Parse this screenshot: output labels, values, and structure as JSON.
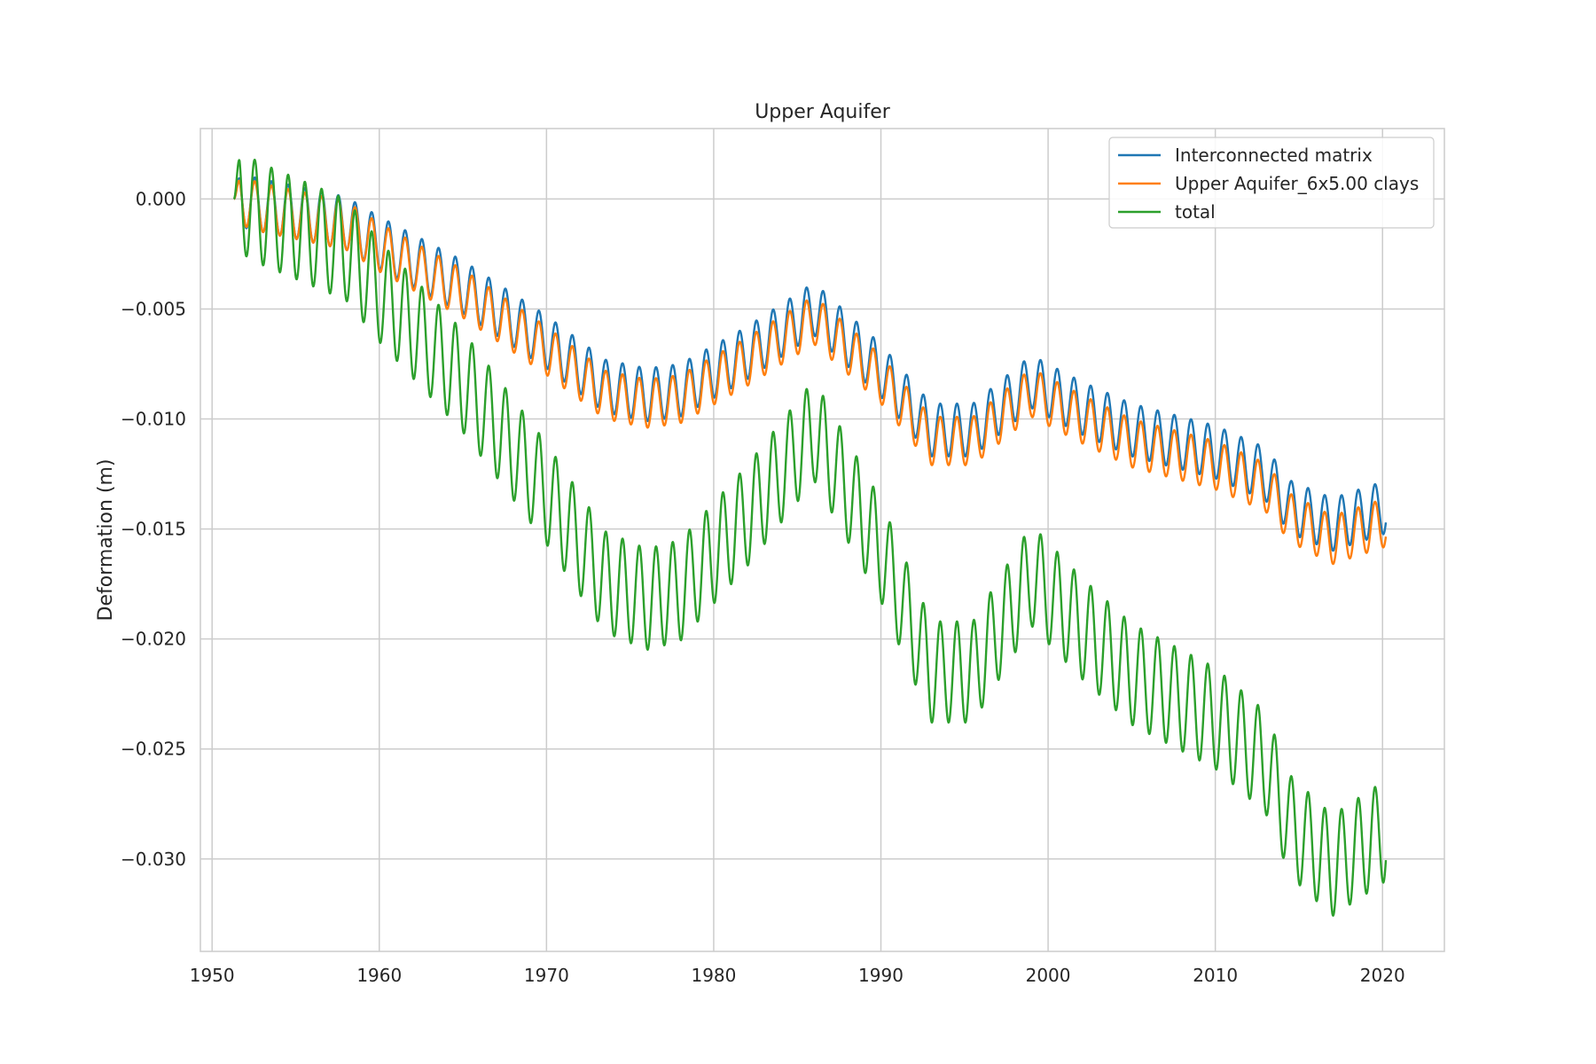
{
  "chart_data": {
    "type": "line",
    "title": "Upper Aquifer",
    "xlabel": "",
    "ylabel": "Deformation (m)",
    "xlim": [
      1949.3,
      2023.7
    ],
    "ylim": [
      -0.0342,
      0.0032
    ],
    "xticks": [
      1950,
      1960,
      1970,
      1980,
      1990,
      2000,
      2010,
      2020
    ],
    "yticks": [
      0.0,
      -0.005,
      -0.01,
      -0.015,
      -0.02,
      -0.025,
      -0.03
    ],
    "ytick_labels": [
      "0.000",
      "−0.005",
      "−0.010",
      "−0.015",
      "−0.020",
      "−0.025",
      "−0.030"
    ],
    "grid": true,
    "legend": "top-right",
    "x_range": [
      1951.3,
      2020.2
    ],
    "series": [
      {
        "name": "Interconnected matrix",
        "color": "#1f77b4",
        "annual_amplitude": 0.0012,
        "trend_knots": {
          "x": [
            1951.3,
            1953.0,
            1958.0,
            1960.0,
            1965.0,
            1970.0,
            1973.5,
            1976.0,
            1978.0,
            1982.0,
            1986.0,
            1990.0,
            1993.0,
            1995.5,
            1999.0,
            2002.0,
            2005.0,
            2010.0,
            2013.0,
            2014.5,
            2017.0,
            2020.2
          ],
          "y": [
            0.0,
            -0.0003,
            -0.0011,
            -0.002,
            -0.004,
            -0.0065,
            -0.0085,
            -0.0089,
            -0.0087,
            -0.007,
            -0.005,
            -0.0078,
            -0.0105,
            -0.0105,
            -0.0083,
            -0.0095,
            -0.0105,
            -0.0115,
            -0.0125,
            -0.014,
            -0.0148,
            -0.014
          ]
        }
      },
      {
        "name": "Upper Aquifer_6x5.00 clays",
        "color": "#ff7f0e",
        "annual_amplitude": 0.0011,
        "trend_knots": {
          "x": [
            1951.3,
            1953.0,
            1958.0,
            1960.0,
            1965.0,
            1970.0,
            1973.5,
            1976.0,
            1978.0,
            1982.0,
            1986.0,
            1990.0,
            1993.0,
            1995.5,
            1999.0,
            2002.0,
            2005.0,
            2010.0,
            2013.0,
            2014.5,
            2017.0,
            2020.2
          ],
          "y": [
            0.0,
            -0.0004,
            -0.0012,
            -0.0022,
            -0.0043,
            -0.0069,
            -0.0089,
            -0.0093,
            -0.0091,
            -0.0074,
            -0.0055,
            -0.0082,
            -0.011,
            -0.011,
            -0.0088,
            -0.01,
            -0.0111,
            -0.0121,
            -0.0131,
            -0.0145,
            -0.0155,
            -0.0147
          ]
        }
      },
      {
        "name": "total",
        "color": "#2ca02c",
        "annual_amplitude": 0.0023,
        "trend_knots": {
          "x": [
            1951.3,
            1953.0,
            1958.0,
            1960.0,
            1965.0,
            1970.0,
            1973.5,
            1976.0,
            1978.0,
            1982.0,
            1986.0,
            1990.0,
            1993.0,
            1995.5,
            1999.0,
            2002.0,
            2005.0,
            2010.0,
            2013.0,
            2014.5,
            2017.0,
            2020.2
          ],
          "y": [
            0.0,
            -0.0007,
            -0.0023,
            -0.0042,
            -0.0083,
            -0.0134,
            -0.0174,
            -0.0182,
            -0.0178,
            -0.0144,
            -0.0105,
            -0.016,
            -0.0215,
            -0.0215,
            -0.0171,
            -0.0195,
            -0.0216,
            -0.0236,
            -0.0256,
            -0.0285,
            -0.0303,
            -0.0287
          ]
        }
      }
    ]
  }
}
